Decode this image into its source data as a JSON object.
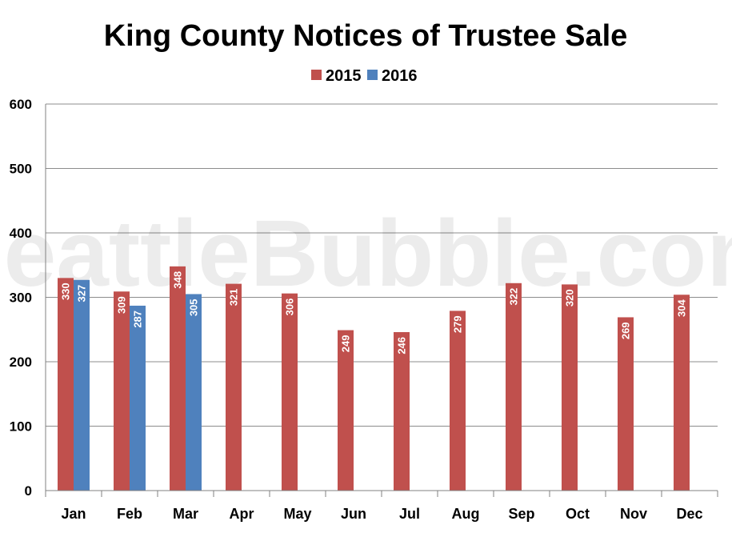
{
  "chart_data": {
    "type": "bar",
    "title": "King County Notices of Trustee Sale",
    "watermark": "SeattleBubble.com",
    "categories": [
      "Jan",
      "Feb",
      "Mar",
      "Apr",
      "May",
      "Jun",
      "Jul",
      "Aug",
      "Sep",
      "Oct",
      "Nov",
      "Dec"
    ],
    "series": [
      {
        "name": "2015",
        "color": "#c0504d",
        "values": [
          330,
          309,
          348,
          321,
          306,
          249,
          246,
          279,
          322,
          320,
          269,
          304
        ]
      },
      {
        "name": "2016",
        "color": "#4f81bd",
        "values": [
          327,
          287,
          305,
          null,
          null,
          null,
          null,
          null,
          null,
          null,
          null,
          null
        ]
      }
    ],
    "yticks": [
      0,
      100,
      200,
      300,
      400,
      500,
      600
    ],
    "ylim": [
      0,
      600
    ],
    "grid": true,
    "legend": "top-center",
    "data_labels": true
  }
}
